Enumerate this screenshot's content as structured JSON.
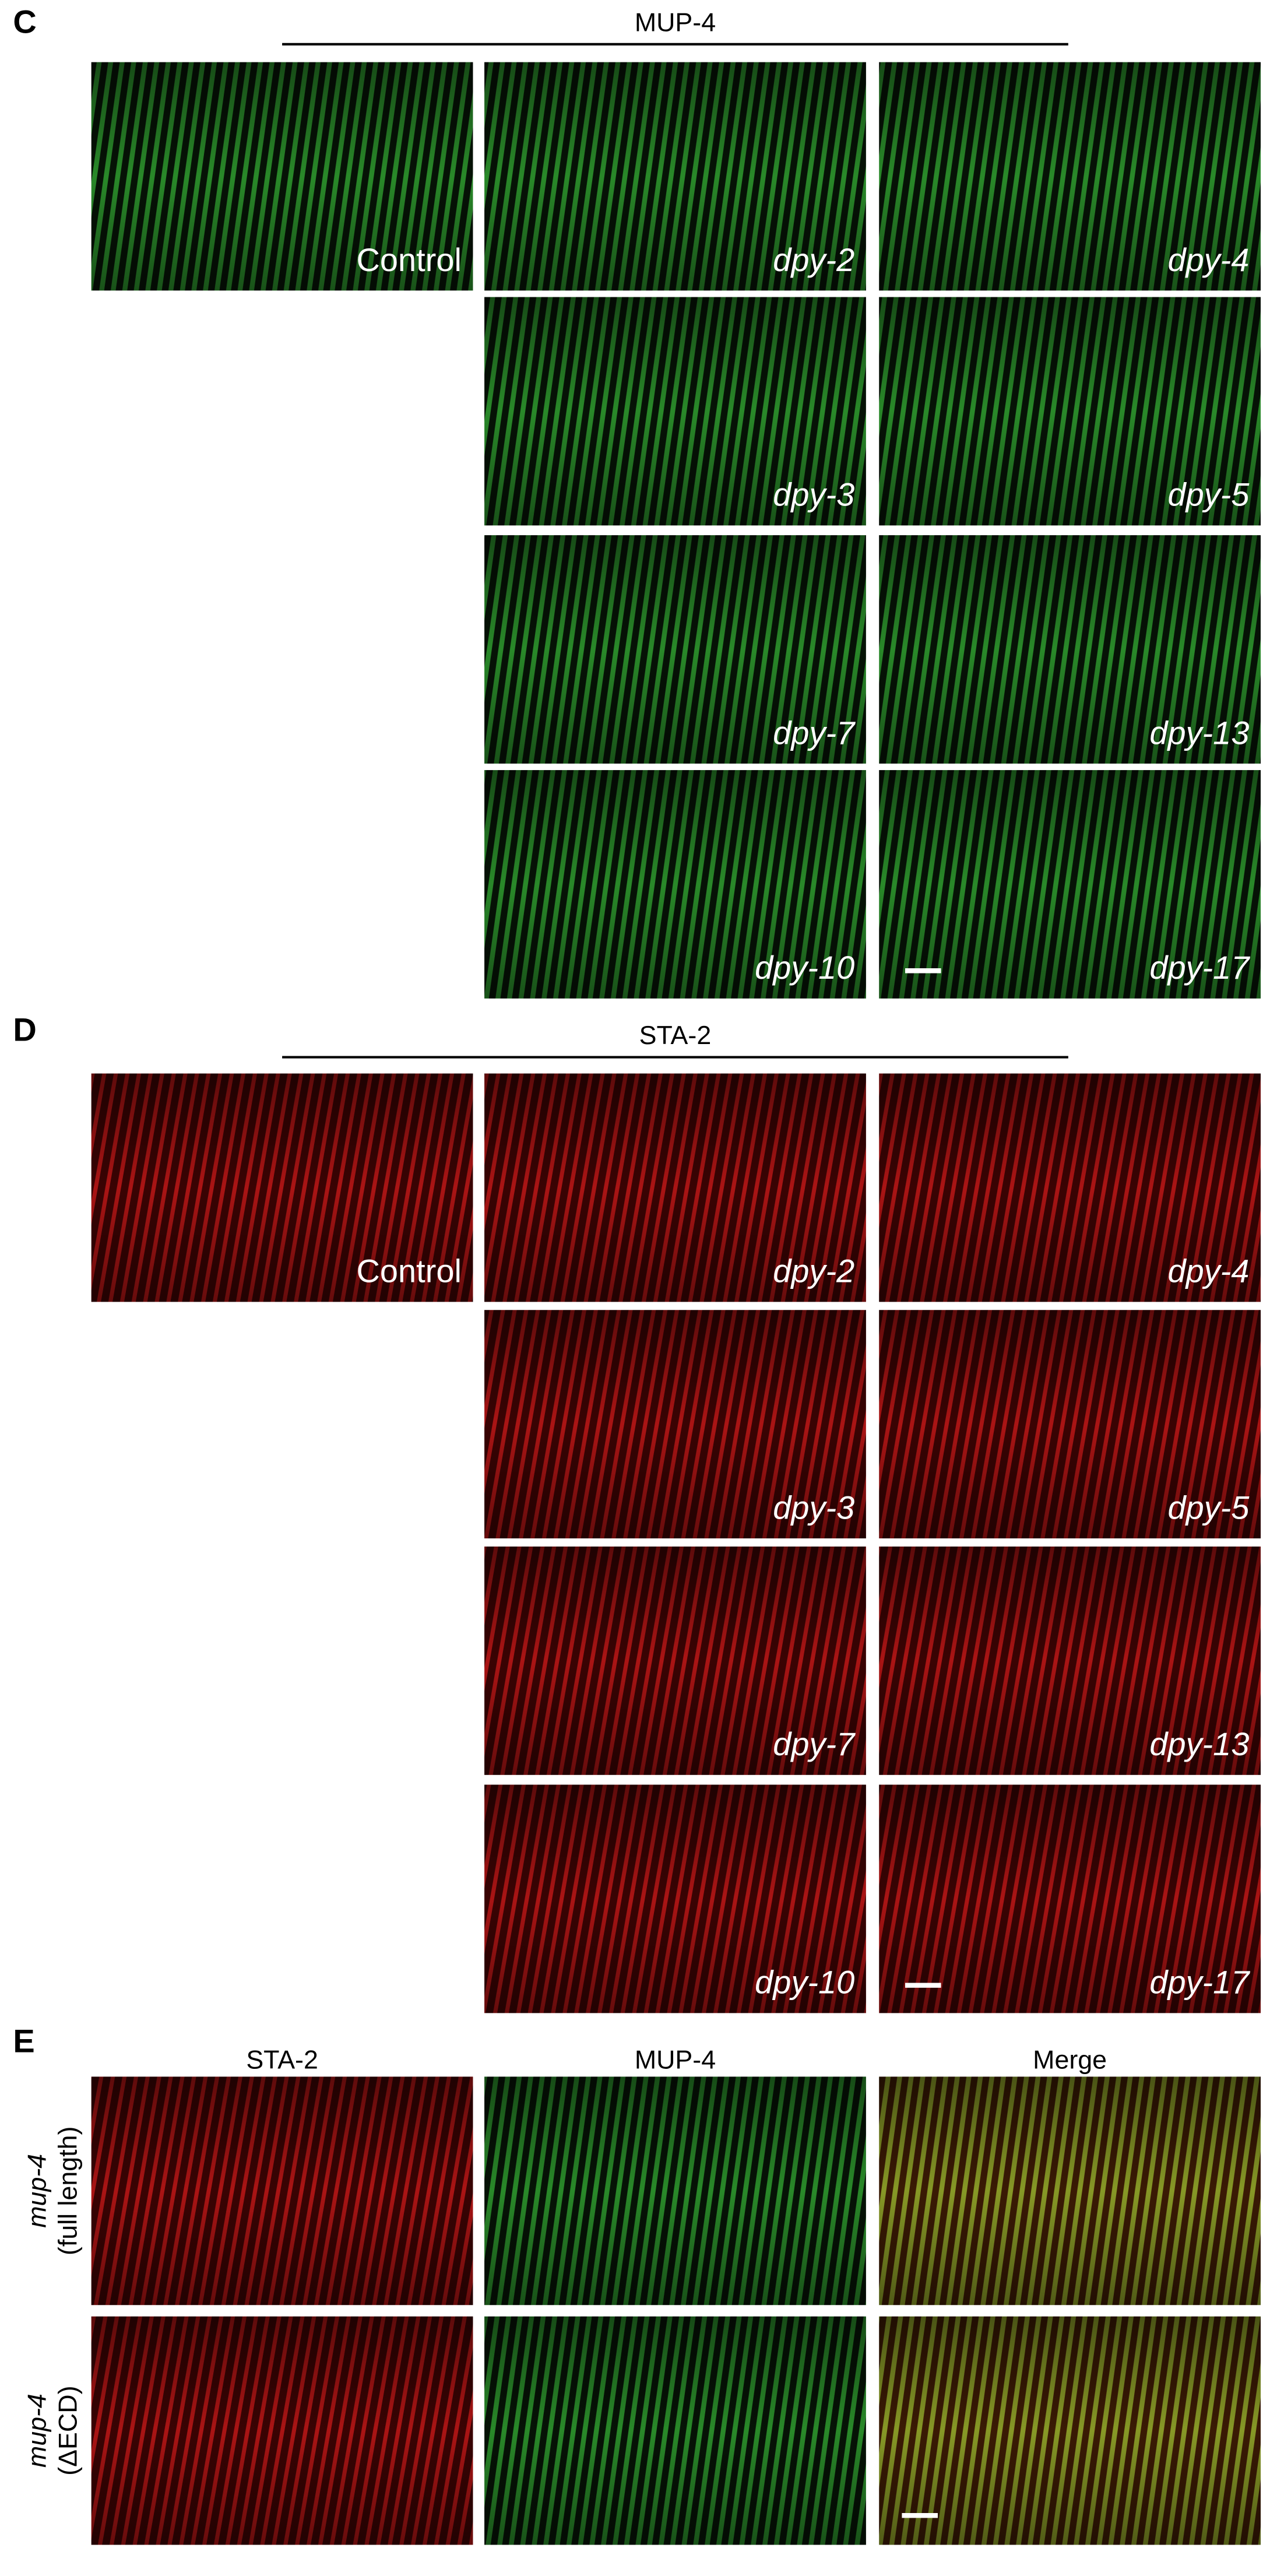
{
  "panel_c": {
    "label": "C",
    "title": "MUP-4",
    "images": [
      {
        "caption": "Control"
      },
      {
        "caption": "dpy-2"
      },
      {
        "caption": "dpy-4"
      },
      {
        "caption": "dpy-3"
      },
      {
        "caption": "dpy-5"
      },
      {
        "caption": "dpy-7"
      },
      {
        "caption": "dpy-13"
      },
      {
        "caption": "dpy-10"
      },
      {
        "caption": "dpy-17"
      }
    ]
  },
  "panel_d": {
    "label": "D",
    "title": "STA-2",
    "images": [
      {
        "caption": "Control"
      },
      {
        "caption": "dpy-2"
      },
      {
        "caption": "dpy-4"
      },
      {
        "caption": "dpy-3"
      },
      {
        "caption": "dpy-5"
      },
      {
        "caption": "dpy-7"
      },
      {
        "caption": "dpy-13"
      },
      {
        "caption": "dpy-10"
      },
      {
        "caption": "dpy-17"
      }
    ]
  },
  "panel_e": {
    "label": "E",
    "column_headers": [
      "STA-2",
      "MUP-4",
      "Merge"
    ],
    "rows": [
      {
        "gene": "mup-4",
        "variant": "(full length)"
      },
      {
        "gene": "mup-4",
        "variant": "(ΔECD)"
      }
    ]
  }
}
